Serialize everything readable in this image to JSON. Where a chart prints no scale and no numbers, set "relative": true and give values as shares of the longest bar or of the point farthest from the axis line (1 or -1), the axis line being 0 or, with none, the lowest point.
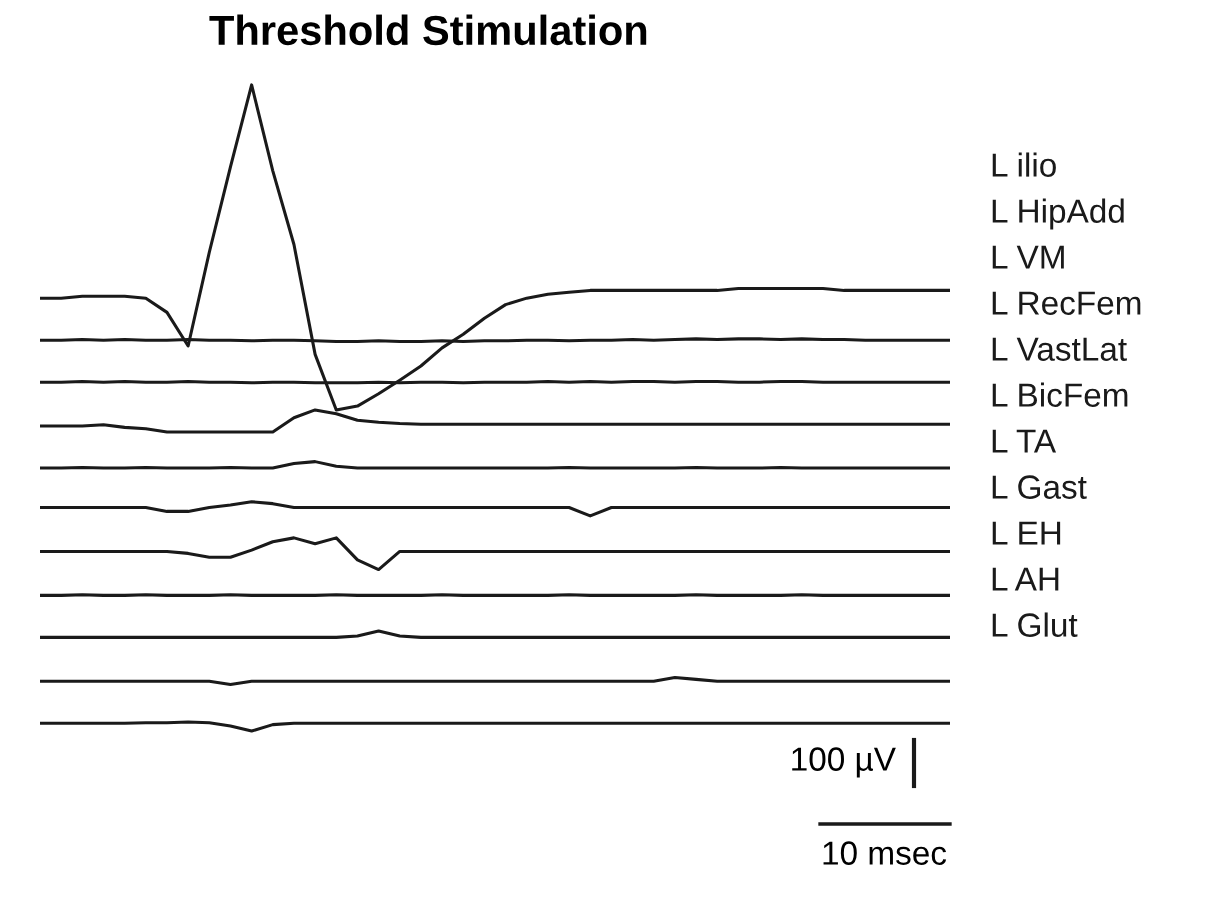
{
  "chart_data": {
    "type": "line",
    "title": "Threshold Stimulation",
    "relative": true,
    "legend": false,
    "marker": "none",
    "line_style": "solid",
    "annotations": [
      "100 µV",
      "10 msec"
    ],
    "categories": [
      null,
      null,
      null,
      null,
      null,
      null,
      null,
      null,
      null,
      null,
      null,
      null,
      null,
      null,
      null,
      null,
      null,
      null,
      null,
      null,
      null,
      null,
      null,
      null,
      null,
      null,
      null,
      null,
      null,
      null,
      null,
      null,
      null,
      null,
      null,
      null,
      null,
      null,
      null,
      null,
      null,
      null,
      null,
      null
    ],
    "series": [
      {
        "name": "L ilio",
        "color": "#1a1a1a",
        "values": [
          0.67,
          0.67,
          0.673,
          0.673,
          0.673,
          0.67,
          0.648,
          0.596,
          0.741,
          0.873,
          1,
          0.867,
          0.753,
          0.583,
          0.497,
          0.503,
          0.522,
          0.543,
          0.565,
          0.593,
          0.614,
          0.639,
          0.66,
          0.67,
          0.676,
          0.679,
          0.682,
          0.682,
          0.682,
          0.682,
          0.682,
          0.682,
          0.682,
          0.685,
          0.685,
          0.685,
          0.685,
          0.685,
          0.682,
          0.682,
          0.682,
          0.682,
          0.682,
          0.682
        ]
      },
      {
        "name": "L HipAdd",
        "color": "#1a1a1a",
        "values": [
          0.605,
          0.605,
          0.606,
          0.605,
          0.606,
          0.605,
          0.605,
          0.606,
          0.605,
          0.605,
          0.604,
          0.605,
          0.605,
          0.604,
          0.603,
          0.603,
          0.604,
          0.603,
          0.603,
          0.604,
          0.603,
          0.604,
          0.604,
          0.605,
          0.605,
          0.604,
          0.605,
          0.605,
          0.606,
          0.605,
          0.606,
          0.607,
          0.606,
          0.607,
          0.607,
          0.606,
          0.607,
          0.606,
          0.606,
          0.605,
          0.605,
          0.605,
          0.605,
          0.605
        ]
      },
      {
        "name": "L VM",
        "color": "#1a1a1a",
        "values": [
          0.54,
          0.54,
          0.541,
          0.54,
          0.541,
          0.54,
          0.54,
          0.541,
          0.54,
          0.54,
          0.539,
          0.54,
          0.54,
          0.539,
          0.539,
          0.539,
          0.54,
          0.539,
          0.54,
          0.54,
          0.539,
          0.54,
          0.54,
          0.54,
          0.541,
          0.54,
          0.541,
          0.54,
          0.541,
          0.541,
          0.54,
          0.541,
          0.541,
          0.54,
          0.54,
          0.541,
          0.541,
          0.54,
          0.54,
          0.54,
          0.54,
          0.54,
          0.54,
          0.54
        ]
      },
      {
        "name": "L RecFem",
        "color": "#1a1a1a",
        "values": [
          0.472,
          0.472,
          0.472,
          0.474,
          0.47,
          0.468,
          0.463,
          0.463,
          0.463,
          0.463,
          0.463,
          0.463,
          0.485,
          0.497,
          0.491,
          0.481,
          0.478,
          0.476,
          0.475,
          0.475,
          0.475,
          0.475,
          0.475,
          0.475,
          0.475,
          0.475,
          0.475,
          0.475,
          0.475,
          0.475,
          0.475,
          0.475,
          0.475,
          0.475,
          0.475,
          0.475,
          0.475,
          0.475,
          0.475,
          0.475,
          0.475,
          0.475,
          0.475,
          0.475
        ]
      },
      {
        "name": "L VastLat",
        "color": "#1a1a1a",
        "values": [
          0.407,
          0.407,
          0.408,
          0.407,
          0.407,
          0.408,
          0.407,
          0.407,
          0.407,
          0.408,
          0.407,
          0.407,
          0.414,
          0.417,
          0.41,
          0.407,
          0.407,
          0.407,
          0.407,
          0.407,
          0.407,
          0.407,
          0.407,
          0.407,
          0.407,
          0.408,
          0.407,
          0.407,
          0.407,
          0.407,
          0.407,
          0.408,
          0.407,
          0.407,
          0.407,
          0.408,
          0.407,
          0.407,
          0.407,
          0.407,
          0.407,
          0.407,
          0.407,
          0.407
        ]
      },
      {
        "name": "L BicFem",
        "color": "#1a1a1a",
        "values": [
          0.346,
          0.346,
          0.346,
          0.346,
          0.346,
          0.346,
          0.34,
          0.34,
          0.346,
          0.35,
          0.355,
          0.352,
          0.346,
          0.346,
          0.346,
          0.346,
          0.346,
          0.346,
          0.346,
          0.346,
          0.346,
          0.346,
          0.346,
          0.346,
          0.346,
          0.346,
          0.333,
          0.346,
          0.346,
          0.346,
          0.346,
          0.346,
          0.346,
          0.346,
          0.346,
          0.346,
          0.346,
          0.346,
          0.346,
          0.346,
          0.346,
          0.346,
          0.346,
          0.346
        ]
      },
      {
        "name": "L TA",
        "color": "#1a1a1a",
        "values": [
          0.278,
          0.278,
          0.278,
          0.278,
          0.278,
          0.278,
          0.278,
          0.275,
          0.269,
          0.269,
          0.28,
          0.293,
          0.299,
          0.29,
          0.299,
          0.265,
          0.25,
          0.278,
          0.278,
          0.278,
          0.278,
          0.278,
          0.278,
          0.278,
          0.278,
          0.278,
          0.278,
          0.278,
          0.278,
          0.278,
          0.278,
          0.278,
          0.278,
          0.278,
          0.278,
          0.278,
          0.278,
          0.278,
          0.278,
          0.278,
          0.278,
          0.278,
          0.278,
          0.278
        ]
      },
      {
        "name": "L Gast",
        "color": "#1a1a1a",
        "values": [
          0.21,
          0.21,
          0.211,
          0.21,
          0.21,
          0.211,
          0.21,
          0.21,
          0.21,
          0.211,
          0.21,
          0.21,
          0.21,
          0.21,
          0.211,
          0.21,
          0.21,
          0.21,
          0.21,
          0.211,
          0.21,
          0.21,
          0.21,
          0.21,
          0.21,
          0.211,
          0.21,
          0.21,
          0.21,
          0.21,
          0.21,
          0.211,
          0.21,
          0.21,
          0.21,
          0.21,
          0.211,
          0.21,
          0.21,
          0.21,
          0.21,
          0.21,
          0.21,
          0.21
        ]
      },
      {
        "name": "L EH",
        "color": "#1a1a1a",
        "values": [
          0.145,
          0.145,
          0.145,
          0.145,
          0.145,
          0.145,
          0.145,
          0.145,
          0.145,
          0.145,
          0.145,
          0.145,
          0.145,
          0.145,
          0.145,
          0.147,
          0.155,
          0.147,
          0.145,
          0.145,
          0.145,
          0.145,
          0.145,
          0.145,
          0.145,
          0.145,
          0.145,
          0.145,
          0.145,
          0.145,
          0.145,
          0.145,
          0.145,
          0.145,
          0.145,
          0.145,
          0.145,
          0.145,
          0.145,
          0.145,
          0.145,
          0.145,
          0.145,
          0.145
        ]
      },
      {
        "name": "L AH",
        "color": "#1a1a1a",
        "values": [
          0.077,
          0.077,
          0.077,
          0.077,
          0.077,
          0.077,
          0.077,
          0.077,
          0.077,
          0.072,
          0.077,
          0.077,
          0.077,
          0.077,
          0.077,
          0.077,
          0.077,
          0.077,
          0.077,
          0.077,
          0.077,
          0.077,
          0.077,
          0.077,
          0.077,
          0.077,
          0.077,
          0.077,
          0.077,
          0.077,
          0.083,
          0.08,
          0.077,
          0.077,
          0.077,
          0.077,
          0.077,
          0.077,
          0.077,
          0.077,
          0.077,
          0.077,
          0.077,
          0.077
        ]
      },
      {
        "name": "L Glut",
        "color": "#1a1a1a",
        "values": [
          0.012,
          0.012,
          0.012,
          0.012,
          0.012,
          0.013,
          0.013,
          0.014,
          0.013,
          0.008,
          0.0,
          0.01,
          0.012,
          0.012,
          0.012,
          0.012,
          0.012,
          0.012,
          0.012,
          0.012,
          0.012,
          0.012,
          0.012,
          0.012,
          0.012,
          0.012,
          0.012,
          0.012,
          0.012,
          0.012,
          0.012,
          0.012,
          0.012,
          0.012,
          0.012,
          0.012,
          0.012,
          0.012,
          0.012,
          0.012,
          0.012,
          0.012,
          0.012,
          0.012
        ]
      }
    ]
  }
}
